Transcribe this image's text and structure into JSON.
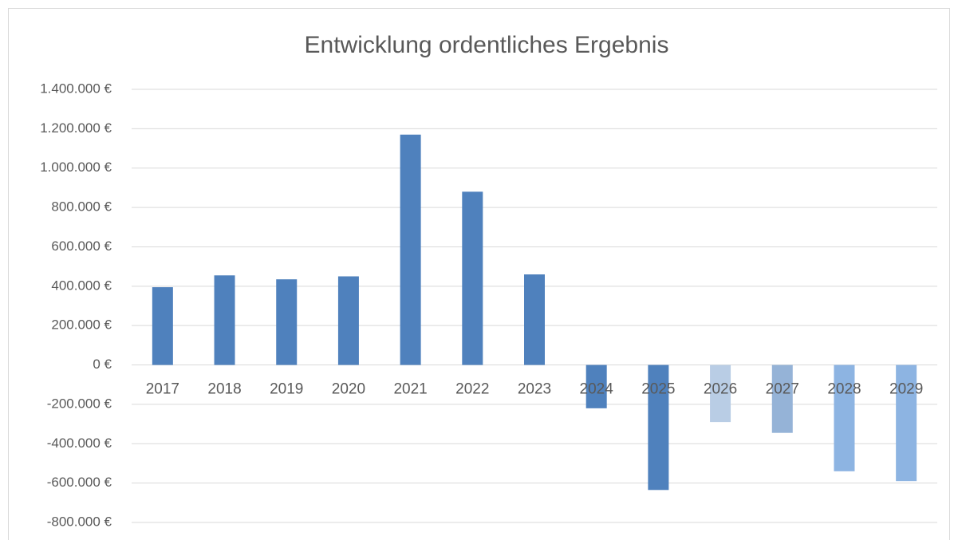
{
  "chart_data": {
    "type": "bar",
    "title": "Entwicklung ordentliches Ergebnis",
    "categories": [
      "2017",
      "2018",
      "2019",
      "2020",
      "2021",
      "2022",
      "2023",
      "2024",
      "2025",
      "2026",
      "2027",
      "2028",
      "2029"
    ],
    "values": [
      395000,
      455000,
      435000,
      450000,
      1170000,
      880000,
      460000,
      -220000,
      -635000,
      -290000,
      -345000,
      -540000,
      -590000
    ],
    "colors": [
      "#4f81bd",
      "#4f81bd",
      "#4f81bd",
      "#4f81bd",
      "#4f81bd",
      "#4f81bd",
      "#4f81bd",
      "#4f81bd",
      "#4f81bd",
      "#b9cde5",
      "#95b3d7",
      "#8db4e2",
      "#8db4e2"
    ],
    "ylim": [
      -800000,
      1400000
    ],
    "yticks": [
      {
        "value": -800000,
        "label": "-800.000 €"
      },
      {
        "value": -600000,
        "label": "-600.000 €"
      },
      {
        "value": -400000,
        "label": "-400.000 €"
      },
      {
        "value": -200000,
        "label": "-200.000 €"
      },
      {
        "value": 0,
        "label": "0 €"
      },
      {
        "value": 200000,
        "label": "200.000 €"
      },
      {
        "value": 400000,
        "label": "400.000 €"
      },
      {
        "value": 600000,
        "label": "600.000 €"
      },
      {
        "value": 800000,
        "label": "800.000 €"
      },
      {
        "value": 1000000,
        "label": "1.000.000 €"
      },
      {
        "value": 1200000,
        "label": "1.200.000 €"
      },
      {
        "value": 1400000,
        "label": "1.400.000 €"
      }
    ],
    "grid": true
  }
}
